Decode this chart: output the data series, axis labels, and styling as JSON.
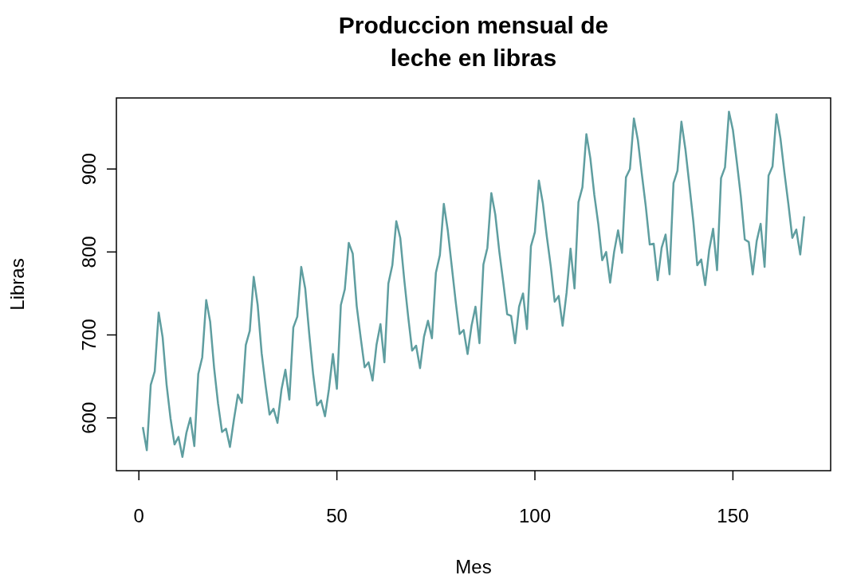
{
  "chart_data": {
    "type": "line",
    "title": "Produccion mensual de\nleche en libras",
    "xlabel": "Mes",
    "ylabel": "Libras",
    "x": [
      1,
      2,
      3,
      4,
      5,
      6,
      7,
      8,
      9,
      10,
      11,
      12,
      13,
      14,
      15,
      16,
      17,
      18,
      19,
      20,
      21,
      22,
      23,
      24,
      25,
      26,
      27,
      28,
      29,
      30,
      31,
      32,
      33,
      34,
      35,
      36,
      37,
      38,
      39,
      40,
      41,
      42,
      43,
      44,
      45,
      46,
      47,
      48,
      49,
      50,
      51,
      52,
      53,
      54,
      55,
      56,
      57,
      58,
      59,
      60,
      61,
      62,
      63,
      64,
      65,
      66,
      67,
      68,
      69,
      70,
      71,
      72,
      73,
      74,
      75,
      76,
      77,
      78,
      79,
      80,
      81,
      82,
      83,
      84,
      85,
      86,
      87,
      88,
      89,
      90,
      91,
      92,
      93,
      94,
      95,
      96,
      97,
      98,
      99,
      100,
      101,
      102,
      103,
      104,
      105,
      106,
      107,
      108,
      109,
      110,
      111,
      112,
      113,
      114,
      115,
      116,
      117,
      118,
      119,
      120,
      121,
      122,
      123,
      124,
      125,
      126,
      127,
      128,
      129,
      130,
      131,
      132,
      133,
      134,
      135,
      136,
      137,
      138,
      139,
      140,
      141,
      142,
      143,
      144,
      145,
      146,
      147,
      148,
      149,
      150,
      151,
      152,
      153,
      154,
      155,
      156,
      157,
      158,
      159,
      160,
      161,
      162,
      163,
      164,
      165,
      166,
      167,
      168
    ],
    "series": [
      {
        "color": "#5f9ea0",
        "values": [
          589,
          561,
          640,
          656,
          727,
          697,
          640,
          599,
          568,
          577,
          553,
          582,
          600,
          566,
          653,
          673,
          742,
          716,
          660,
          617,
          583,
          587,
          565,
          598,
          628,
          618,
          688,
          705,
          770,
          736,
          678,
          639,
          604,
          611,
          594,
          634,
          658,
          622,
          709,
          722,
          782,
          756,
          702,
          653,
          615,
          621,
          602,
          635,
          677,
          635,
          736,
          755,
          811,
          798,
          735,
          697,
          661,
          667,
          645,
          688,
          713,
          667,
          762,
          784,
          837,
          817,
          767,
          722,
          681,
          687,
          660,
          698,
          717,
          696,
          775,
          796,
          858,
          826,
          783,
          740,
          701,
          706,
          677,
          711,
          734,
          690,
          785,
          805,
          871,
          845,
          801,
          764,
          725,
          723,
          690,
          734,
          750,
          707,
          807,
          824,
          886,
          859,
          819,
          783,
          740,
          747,
          711,
          751,
          804,
          756,
          860,
          878,
          942,
          913,
          869,
          834,
          790,
          800,
          763,
          800,
          826,
          799,
          890,
          900,
          961,
          935,
          894,
          855,
          809,
          810,
          766,
          805,
          821,
          773,
          883,
          898,
          957,
          924,
          881,
          837,
          784,
          791,
          760,
          802,
          828,
          778,
          889,
          902,
          969,
          947,
          908,
          867,
          815,
          812,
          773,
          813,
          834,
          782,
          892,
          903,
          966,
          937,
          896,
          858,
          817,
          827,
          797,
          843
        ]
      }
    ],
    "xlim": [
      -5.68,
      174.68
    ],
    "ylim": [
      536.36,
      985.64
    ],
    "xticks": [
      0,
      50,
      100,
      150
    ],
    "yticks": [
      600,
      700,
      800,
      900
    ],
    "marker": "none",
    "line_style": "solid",
    "grid": false
  }
}
